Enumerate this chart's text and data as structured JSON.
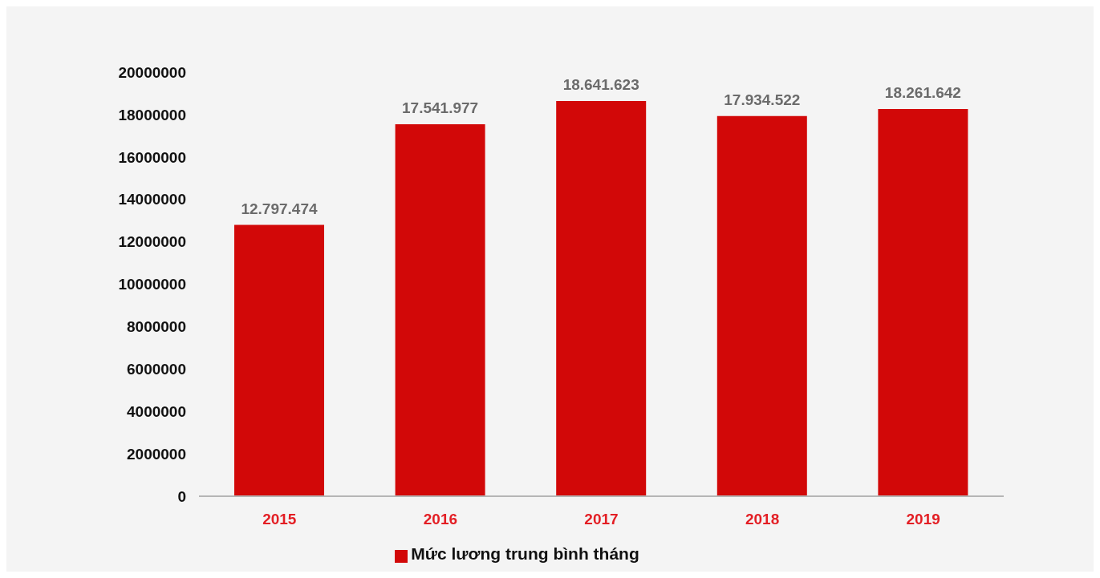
{
  "chart_data": {
    "type": "bar",
    "categories": [
      "2015",
      "2016",
      "2017",
      "2018",
      "2019"
    ],
    "series": [
      {
        "name": "Mức lương trung bình tháng",
        "color": "#d20808",
        "values": [
          12797474,
          17541977,
          18641623,
          17934522,
          18261642
        ],
        "value_labels": [
          "12.797.474",
          "17.541.977",
          "18.641.623",
          "17.934.522",
          "18.261.642"
        ]
      }
    ],
    "ylim": [
      0,
      20000000
    ],
    "yticks": [
      0,
      2000000,
      4000000,
      6000000,
      8000000,
      10000000,
      12000000,
      14000000,
      16000000,
      18000000,
      20000000
    ],
    "grid": false,
    "legend": "bottom"
  }
}
